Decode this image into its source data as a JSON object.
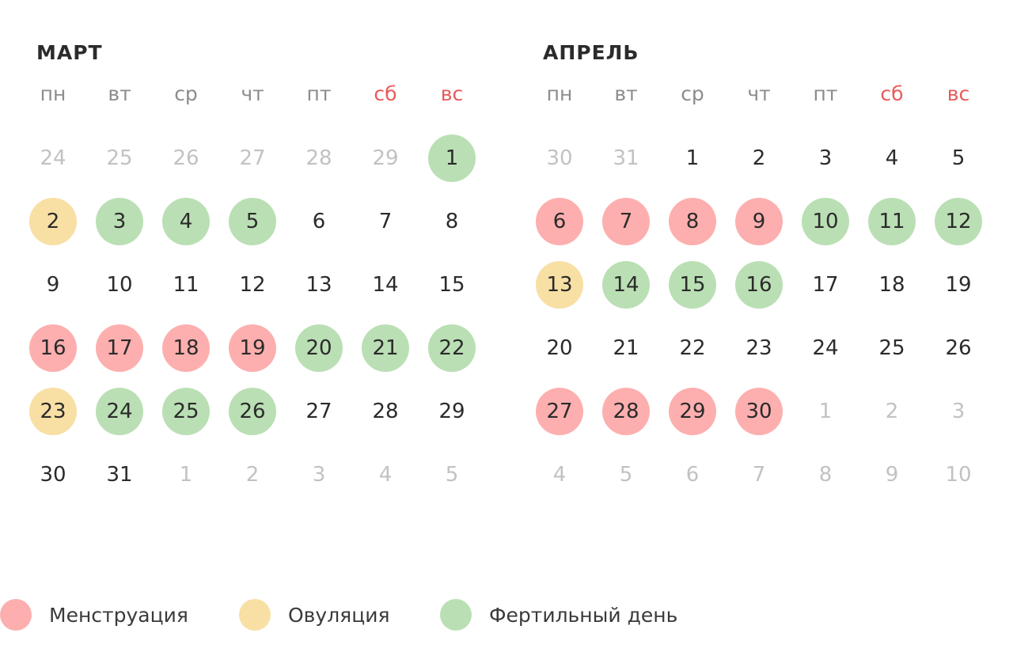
{
  "colors": {
    "menstruation": "#fcafae",
    "ovulation": "#f8dfa4",
    "fertile": "#badfb4",
    "weekend_header": "#e85a5a",
    "weekday_header": "#8c8c8c",
    "other_month_day": "#c2c2c2",
    "day_text": "#2b2b2b"
  },
  "weekdays": [
    {
      "label": "пн",
      "weekend": false
    },
    {
      "label": "вт",
      "weekend": false
    },
    {
      "label": "ср",
      "weekend": false
    },
    {
      "label": "чт",
      "weekend": false
    },
    {
      "label": "пт",
      "weekend": false
    },
    {
      "label": "сб",
      "weekend": true
    },
    {
      "label": "вс",
      "weekend": true
    }
  ],
  "months": [
    {
      "title": "МАРТ",
      "weeks": [
        [
          {
            "d": "24",
            "o": true
          },
          {
            "d": "25",
            "o": true
          },
          {
            "d": "26",
            "o": true
          },
          {
            "d": "27",
            "o": true
          },
          {
            "d": "28",
            "o": true
          },
          {
            "d": "29",
            "o": true
          },
          {
            "d": "1",
            "t": "fertile"
          }
        ],
        [
          {
            "d": "2",
            "t": "ovulation"
          },
          {
            "d": "3",
            "t": "fertile"
          },
          {
            "d": "4",
            "t": "fertile"
          },
          {
            "d": "5",
            "t": "fertile"
          },
          {
            "d": "6"
          },
          {
            "d": "7"
          },
          {
            "d": "8"
          }
        ],
        [
          {
            "d": "9"
          },
          {
            "d": "10"
          },
          {
            "d": "11"
          },
          {
            "d": "12"
          },
          {
            "d": "13"
          },
          {
            "d": "14"
          },
          {
            "d": "15"
          }
        ],
        [
          {
            "d": "16",
            "t": "menstruation"
          },
          {
            "d": "17",
            "t": "menstruation"
          },
          {
            "d": "18",
            "t": "menstruation"
          },
          {
            "d": "19",
            "t": "menstruation"
          },
          {
            "d": "20",
            "t": "fertile"
          },
          {
            "d": "21",
            "t": "fertile"
          },
          {
            "d": "22",
            "t": "fertile"
          }
        ],
        [
          {
            "d": "23",
            "t": "ovulation"
          },
          {
            "d": "24",
            "t": "fertile"
          },
          {
            "d": "25",
            "t": "fertile"
          },
          {
            "d": "26",
            "t": "fertile"
          },
          {
            "d": "27"
          },
          {
            "d": "28"
          },
          {
            "d": "29"
          }
        ],
        [
          {
            "d": "30"
          },
          {
            "d": "31"
          },
          {
            "d": "1",
            "o": true
          },
          {
            "d": "2",
            "o": true
          },
          {
            "d": "3",
            "o": true
          },
          {
            "d": "4",
            "o": true
          },
          {
            "d": "5",
            "o": true
          }
        ]
      ]
    },
    {
      "title": "АПРЕЛЬ",
      "weeks": [
        [
          {
            "d": "30",
            "o": true
          },
          {
            "d": "31",
            "o": true
          },
          {
            "d": "1"
          },
          {
            "d": "2"
          },
          {
            "d": "3"
          },
          {
            "d": "4"
          },
          {
            "d": "5"
          }
        ],
        [
          {
            "d": "6",
            "t": "menstruation"
          },
          {
            "d": "7",
            "t": "menstruation"
          },
          {
            "d": "8",
            "t": "menstruation"
          },
          {
            "d": "9",
            "t": "menstruation"
          },
          {
            "d": "10",
            "t": "fertile"
          },
          {
            "d": "11",
            "t": "fertile"
          },
          {
            "d": "12",
            "t": "fertile"
          }
        ],
        [
          {
            "d": "13",
            "t": "ovulation"
          },
          {
            "d": "14",
            "t": "fertile"
          },
          {
            "d": "15",
            "t": "fertile"
          },
          {
            "d": "16",
            "t": "fertile"
          },
          {
            "d": "17"
          },
          {
            "d": "18"
          },
          {
            "d": "19"
          }
        ],
        [
          {
            "d": "20"
          },
          {
            "d": "21"
          },
          {
            "d": "22"
          },
          {
            "d": "23"
          },
          {
            "d": "24"
          },
          {
            "d": "25"
          },
          {
            "d": "26"
          }
        ],
        [
          {
            "d": "27",
            "t": "menstruation"
          },
          {
            "d": "28",
            "t": "menstruation"
          },
          {
            "d": "29",
            "t": "menstruation"
          },
          {
            "d": "30",
            "t": "menstruation"
          },
          {
            "d": "1",
            "o": true
          },
          {
            "d": "2",
            "o": true
          },
          {
            "d": "3",
            "o": true
          }
        ],
        [
          {
            "d": "4",
            "o": true
          },
          {
            "d": "5",
            "o": true
          },
          {
            "d": "6",
            "o": true
          },
          {
            "d": "7",
            "o": true
          },
          {
            "d": "8",
            "o": true
          },
          {
            "d": "9",
            "o": true
          },
          {
            "d": "10",
            "o": true
          }
        ]
      ]
    }
  ],
  "legend": [
    {
      "key": "menstruation",
      "label": "Менструация"
    },
    {
      "key": "ovulation",
      "label": "Овуляция"
    },
    {
      "key": "fertile",
      "label": "Фертильный день"
    }
  ]
}
